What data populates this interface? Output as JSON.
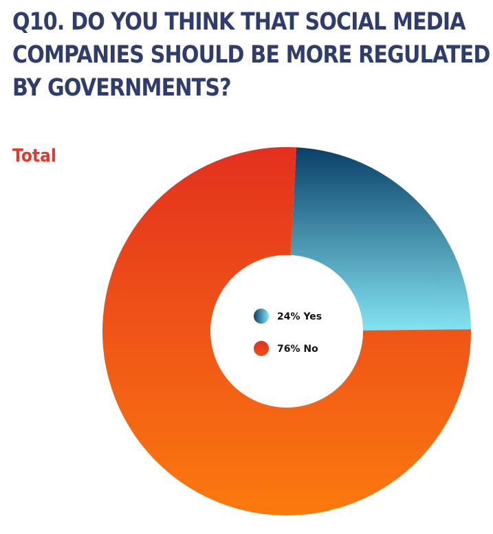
{
  "title_lines": [
    "Q10. DO YOU THINK THAT SOCIAL MEDIA",
    "COMPANIES SHOULD BE MORE REGULATED",
    "BY GOVERNMENTS?"
  ],
  "chart_data": {
    "type": "pie",
    "title": "Q10. DO YOU THINK THAT SOCIAL MEDIA COMPANIES SHOULD BE MORE REGULATED BY GOVERNMENTS?",
    "subtitle": "Total",
    "donut": true,
    "unit": "%",
    "slices": [
      {
        "label": "Yes",
        "value": 24,
        "legend": "24% Yes",
        "color_top": "#0a4068",
        "color_bottom": "#86e6f4"
      },
      {
        "label": "No",
        "value": 76,
        "legend": "76% No",
        "color_top": "#e3301f",
        "color_bottom": "#fb7a0e"
      }
    ]
  }
}
